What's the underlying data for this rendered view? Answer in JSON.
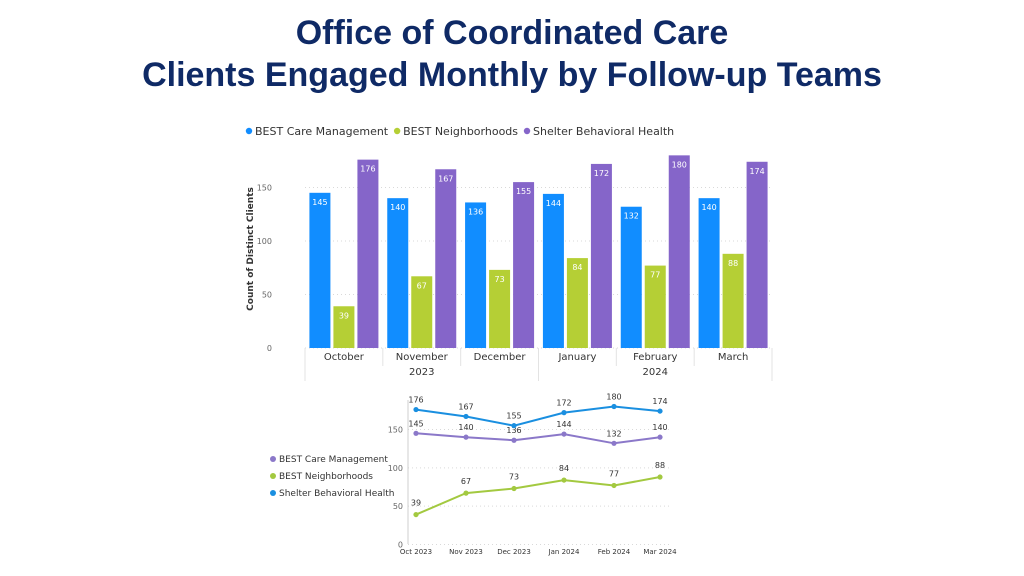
{
  "header": {
    "title_line1": "Office of Coordinated Care",
    "title_line2": "Clients Engaged Monthly by Follow-up Teams"
  },
  "chart_data": [
    {
      "type": "bar",
      "categories": [
        "October",
        "November",
        "December",
        "January",
        "February",
        "March"
      ],
      "year_groups": [
        {
          "label": "2023",
          "categories": [
            "October",
            "November",
            "December"
          ]
        },
        {
          "label": "2024",
          "categories": [
            "January",
            "February",
            "March"
          ]
        }
      ],
      "series": [
        {
          "name": "BEST Care Management",
          "color": "#118dff",
          "values": [
            145,
            140,
            136,
            144,
            132,
            140
          ]
        },
        {
          "name": "BEST Neighborhoods",
          "color": "#b5cf35",
          "values": [
            39,
            67,
            73,
            84,
            77,
            88
          ]
        },
        {
          "name": "Shelter Behavioral Health",
          "color": "#8565c9",
          "values": [
            176,
            167,
            155,
            172,
            180,
            174
          ]
        }
      ],
      "yticks": [
        0,
        50,
        100,
        150
      ],
      "ylim": [
        0,
        185
      ],
      "ylabel": "Count of Distinct Clients",
      "xlabel": "",
      "legend": "top-left",
      "grid": true
    },
    {
      "type": "line",
      "categories": [
        "Oct 2023",
        "Nov 2023",
        "Dec 2023",
        "Jan 2024",
        "Feb 2024",
        "Mar 2024"
      ],
      "series": [
        {
          "name": "BEST Care Management",
          "color": "#8b78c9",
          "values": [
            145,
            140,
            136,
            144,
            132,
            140
          ]
        },
        {
          "name": "BEST Neighborhoods",
          "color": "#a3c940",
          "values": [
            39,
            67,
            73,
            84,
            77,
            88
          ]
        },
        {
          "name": "Shelter Behavioral Health",
          "color": "#1a8fe0",
          "values": [
            176,
            167,
            155,
            172,
            180,
            174
          ]
        }
      ],
      "yticks": [
        0,
        50,
        100,
        150
      ],
      "ylim": [
        0,
        185
      ],
      "legend": "left",
      "grid": true
    }
  ]
}
